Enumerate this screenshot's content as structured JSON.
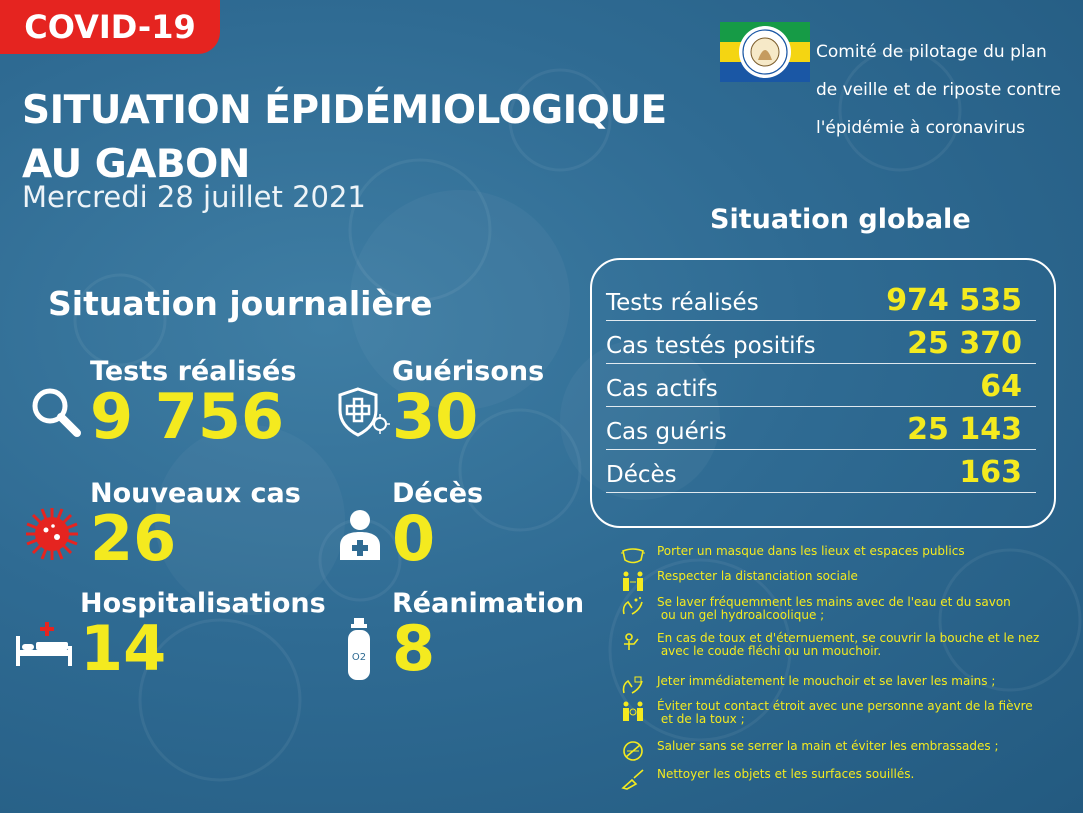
{
  "badge": "COVID-19",
  "title_line1": "SITUATION ÉPIDÉMIOLOGIQUE",
  "title_line2": "AU GABON",
  "date": "Mercredi 28 juillet 2021",
  "committee_line1": "Comité de pilotage du plan",
  "committee_line2": "de veille et de riposte contre",
  "committee_line3": "l'épidémie à coronavirus",
  "logo_text": "RÉPUBLIQUE GABONAISE · UNION · TRAVAIL · JUSTICE",
  "colors": {
    "accent_yellow": "#f4ea1f",
    "badge_red": "#e52420",
    "flag_green": "#169b46",
    "flag_yellow": "#f4d512",
    "flag_blue": "#1a57a5"
  },
  "daily": {
    "title": "Situation journalière",
    "tests": {
      "label": "Tests réalisés",
      "value": "9 756",
      "icon": "magnifier-icon"
    },
    "recoveries": {
      "label": "Guérisons",
      "value": "30",
      "icon": "shield-cross-icon"
    },
    "new_cases": {
      "label": "Nouveaux cas",
      "value": "26",
      "icon": "virus-icon"
    },
    "deaths": {
      "label": "Décès",
      "value": "0",
      "icon": "patient-icon"
    },
    "hospital": {
      "label": "Hospitalisations",
      "value": "14",
      "icon": "hospital-bed-icon"
    },
    "icu": {
      "label": "Réanimation",
      "value": "8",
      "icon": "oxygen-tank-icon"
    }
  },
  "global": {
    "title": "Situation globale",
    "rows": [
      {
        "label": "Tests réalisés",
        "value": "974 535"
      },
      {
        "label": "Cas testés positifs",
        "value": "25 370"
      },
      {
        "label": "Cas actifs",
        "value": "64"
      },
      {
        "label": "Cas guéris",
        "value": "25 143"
      },
      {
        "label": "Décès",
        "value": "163"
      }
    ]
  },
  "advice": [
    {
      "text": "Porter un masque dans les lieux et espaces publics",
      "icon": "mask-icon"
    },
    {
      "text": "Respecter la distanciation sociale",
      "icon": "distancing-icon"
    },
    {
      "text": "Se laver fréquemment les mains avec de l'eau et du savon\n ou un gel hydroalcoolique ;",
      "icon": "handwash-icon"
    },
    {
      "text": "En cas de toux et d'éternuement, se couvrir la bouche et le nez\n avec le coude fléchi ou un mouchoir.",
      "icon": "cough-elbow-icon"
    },
    {
      "text": "Jeter immédiatement le mouchoir et se laver les mains ;",
      "icon": "tissue-icon"
    },
    {
      "text": "Éviter tout contact étroit avec une personne ayant de la fièvre\n et de la toux ;",
      "icon": "avoid-contact-icon"
    },
    {
      "text": "Saluer sans se serrer la main et éviter les embrassades ;",
      "icon": "no-handshake-icon"
    },
    {
      "text": "Nettoyer les objets et les surfaces souillés.",
      "icon": "cleaning-icon"
    }
  ]
}
